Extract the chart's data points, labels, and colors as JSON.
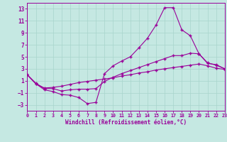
{
  "xlabel": "Windchill (Refroidissement éolien,°C)",
  "xlim": [
    0,
    23
  ],
  "ylim": [
    -4,
    14
  ],
  "xmin": 0,
  "xmax": 23,
  "ymin": -3,
  "ymax": 13,
  "xticks": [
    0,
    1,
    2,
    3,
    4,
    5,
    6,
    7,
    8,
    9,
    10,
    11,
    12,
    13,
    14,
    15,
    16,
    17,
    18,
    19,
    20,
    21,
    22,
    23
  ],
  "yticks": [
    -3,
    -1,
    1,
    3,
    5,
    7,
    9,
    11,
    13
  ],
  "bg_color": "#c5e8e2",
  "line_color": "#990099",
  "grid_color": "#a8d4cc",
  "curve1_x": [
    0,
    1,
    2,
    3,
    4,
    5,
    6,
    7,
    8,
    9,
    10,
    11,
    12,
    13,
    14,
    15,
    16,
    17,
    18,
    19,
    20,
    21,
    22,
    23
  ],
  "curve1_y": [
    2.0,
    0.5,
    -0.5,
    -0.8,
    -1.3,
    -1.4,
    -1.8,
    -2.8,
    -2.6,
    2.2,
    3.5,
    4.3,
    5.0,
    6.5,
    8.1,
    10.3,
    13.2,
    13.2,
    9.5,
    8.5,
    5.5,
    4.0,
    3.6,
    3.0
  ],
  "curve2_x": [
    0,
    1,
    2,
    3,
    4,
    5,
    6,
    7,
    8,
    9,
    10,
    11,
    12,
    13,
    14,
    15,
    16,
    17,
    18,
    19,
    20,
    21,
    22,
    23
  ],
  "curve2_y": [
    2.0,
    0.6,
    -0.3,
    -0.3,
    -0.7,
    -0.5,
    -0.4,
    -0.4,
    -0.3,
    0.9,
    1.6,
    2.2,
    2.7,
    3.2,
    3.7,
    4.2,
    4.7,
    5.2,
    5.2,
    5.6,
    5.5,
    3.9,
    3.7,
    3.0
  ],
  "curve3_x": [
    0,
    1,
    2,
    3,
    4,
    5,
    6,
    7,
    8,
    9,
    10,
    11,
    12,
    13,
    14,
    15,
    16,
    17,
    18,
    19,
    20,
    21,
    22,
    23
  ],
  "curve3_y": [
    2.0,
    0.5,
    -0.2,
    -0.1,
    0.1,
    0.4,
    0.7,
    0.9,
    1.1,
    1.3,
    1.5,
    1.8,
    2.0,
    2.3,
    2.5,
    2.8,
    3.0,
    3.2,
    3.4,
    3.6,
    3.8,
    3.5,
    3.1,
    2.9
  ]
}
